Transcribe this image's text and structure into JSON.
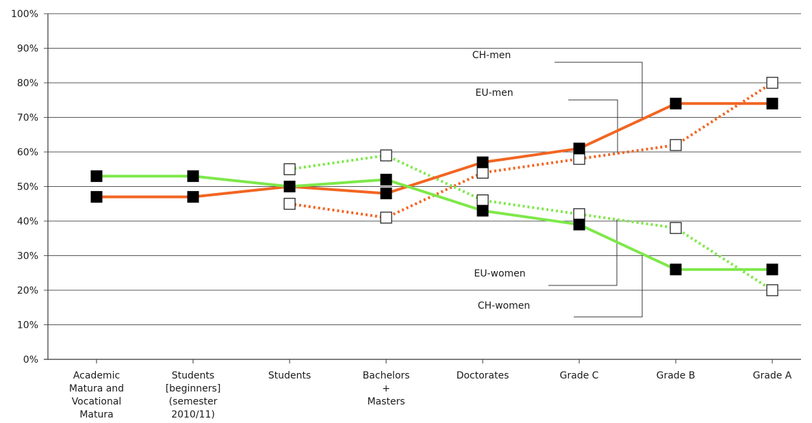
{
  "chart_data": {
    "type": "line",
    "title": "",
    "xlabel": "",
    "ylabel": "",
    "ylim": [
      0,
      100
    ],
    "yticks": [
      "0%",
      "10%",
      "20%",
      "30%",
      "40%",
      "50%",
      "60%",
      "70%",
      "80%",
      "90%",
      "100%"
    ],
    "grid": "horizontal",
    "legend": "none",
    "categories": [
      [
        "Academic",
        "Matura and",
        "Vocational",
        "Matura"
      ],
      [
        "Students",
        "[beginners]",
        "(semester",
        "2010/11)"
      ],
      [
        "Students"
      ],
      [
        "Bachelors",
        "+",
        "Masters"
      ],
      [
        "Doctorates"
      ],
      [
        "Grade C"
      ],
      [
        "Grade B"
      ],
      [
        "Grade A"
      ]
    ],
    "series": [
      {
        "name": "CH-men",
        "color": "#f26522",
        "style": "solid",
        "marker": "filled-square",
        "values": [
          47,
          47,
          50,
          48,
          57,
          61,
          74,
          74
        ]
      },
      {
        "name": "CH-women",
        "color": "#7ee84a",
        "style": "solid",
        "marker": "filled-square",
        "values": [
          53,
          53,
          50,
          52,
          43,
          39,
          26,
          26
        ]
      },
      {
        "name": "EU-men",
        "color": "#f26522",
        "style": "dotted",
        "marker": "open-square",
        "values": [
          null,
          null,
          45,
          41,
          54,
          58,
          62,
          80
        ]
      },
      {
        "name": "EU-women",
        "color": "#7ee84a",
        "style": "dotted",
        "marker": "open-square",
        "values": [
          null,
          null,
          55,
          59,
          46,
          42,
          38,
          20
        ]
      }
    ],
    "annotations": [
      {
        "text": "CH-men",
        "series": "CH-men",
        "category_index": 5
      },
      {
        "text": "EU-men",
        "series": "EU-men",
        "category_index": 5
      },
      {
        "text": "EU-women",
        "series": "EU-women",
        "category_index": 5
      },
      {
        "text": "CH-women",
        "series": "CH-women",
        "category_index": 5
      }
    ]
  }
}
